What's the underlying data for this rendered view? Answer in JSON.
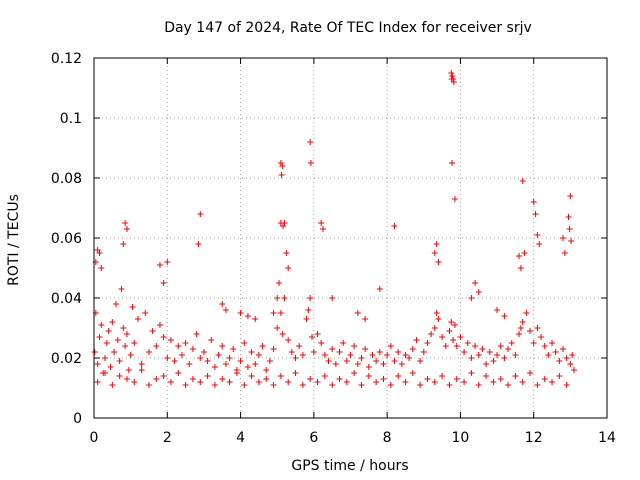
{
  "chart_data": {
    "type": "scatter",
    "title": "Day 147 of 2024, Rate Of TEC Index for receiver srjv",
    "xlabel": "GPS time / hours",
    "ylabel": "ROTI / TECUs",
    "xlim": [
      0,
      14
    ],
    "ylim": [
      0,
      0.12
    ],
    "xticks": [
      0,
      2,
      4,
      6,
      8,
      10,
      12,
      14
    ],
    "xtick_labels": [
      "0",
      "2",
      "4",
      "6",
      "8",
      "10",
      "12",
      "14"
    ],
    "yticks": [
      0,
      0.02,
      0.04,
      0.06,
      0.08,
      0.1,
      0.12
    ],
    "ytick_labels": [
      "0",
      "0.02",
      "0.04",
      "0.06",
      "0.08",
      "0.1",
      "0.12"
    ],
    "grid": true,
    "marker": "+",
    "color": "#ff0000",
    "series": [
      {
        "name": "ROTI",
        "x": [
          0.02,
          0.05,
          0.1,
          0.15,
          0.2,
          0.25,
          0.3,
          0.35,
          0.4,
          0.45,
          0.5,
          0.55,
          0.6,
          0.65,
          0.7,
          0.75,
          0.8,
          0.85,
          0.9,
          0.95,
          1.0,
          1.05,
          1.1,
          1.2,
          1.3,
          1.4,
          1.5,
          1.6,
          1.7,
          1.8,
          1.9,
          2.0,
          2.1,
          2.2,
          2.3,
          2.4,
          2.5,
          2.6,
          2.7,
          2.8,
          2.9,
          3.0,
          3.1,
          3.2,
          3.3,
          3.4,
          3.5,
          3.6,
          3.7,
          3.8,
          3.9,
          4.0,
          4.1,
          4.2,
          4.3,
          4.4,
          4.5,
          4.6,
          4.7,
          4.8,
          4.9,
          5.0,
          5.05,
          5.1,
          5.15,
          5.2,
          5.3,
          5.4,
          5.5,
          5.6,
          5.7,
          5.8,
          5.85,
          5.9,
          5.95,
          6.0,
          6.1,
          6.2,
          6.3,
          6.4,
          6.5,
          6.6,
          6.7,
          6.8,
          6.9,
          7.0,
          7.1,
          7.2,
          7.3,
          7.4,
          7.5,
          7.6,
          7.7,
          7.8,
          7.9,
          8.0,
          8.1,
          8.2,
          8.3,
          8.4,
          8.5,
          8.6,
          8.7,
          8.8,
          8.9,
          9.0,
          9.1,
          9.2,
          9.3,
          9.35,
          9.4,
          9.5,
          9.6,
          9.7,
          9.75,
          9.8,
          9.85,
          9.9,
          10.0,
          10.1,
          10.2,
          10.3,
          10.4,
          10.5,
          10.6,
          10.7,
          10.8,
          10.9,
          11.0,
          11.1,
          11.2,
          11.3,
          11.4,
          11.5,
          11.6,
          11.65,
          11.7,
          11.8,
          11.9,
          12.0,
          12.1,
          12.2,
          12.3,
          12.4,
          12.5,
          12.6,
          12.7,
          12.8,
          12.9,
          13.0,
          13.05,
          13.1,
          0.1,
          0.3,
          0.5,
          0.7,
          0.9,
          1.1,
          1.3,
          1.5,
          1.7,
          1.9,
          2.1,
          2.3,
          2.5,
          2.7,
          2.9,
          3.1,
          3.3,
          3.5,
          3.7,
          3.9,
          4.1,
          4.3,
          4.5,
          4.7,
          4.9,
          5.1,
          5.3,
          5.5,
          5.7,
          5.9,
          6.1,
          6.3,
          6.5,
          6.7,
          6.9,
          7.1,
          7.3,
          7.5,
          7.7,
          7.9,
          8.1,
          8.3,
          8.5,
          8.7,
          8.9,
          9.1,
          9.3,
          9.5,
          9.7,
          9.9,
          10.1,
          10.3,
          10.5,
          10.7,
          10.9,
          11.1,
          11.3,
          11.5,
          11.7,
          11.9,
          12.1,
          12.3,
          12.5,
          12.7,
          12.9,
          0.85,
          0.9,
          0.8,
          5.1,
          5.12,
          5.14,
          5.1,
          5.16,
          5.2,
          5.25,
          5.3,
          5.9,
          5.92,
          6.2,
          6.25,
          9.75,
          9.8,
          9.78,
          9.82,
          9.77,
          9.76,
          9.85,
          11.7,
          12.0,
          12.05,
          12.95,
          12.98,
          13.0,
          13.02,
          2.85,
          2.9,
          0.1,
          0.15,
          0.2,
          1.8,
          1.9,
          2.0,
          4.9,
          5.0,
          9.3,
          9.35,
          9.4,
          11.6,
          11.65,
          11.75,
          12.8,
          12.85,
          8.2,
          3.5,
          3.6,
          6.5,
          7.8,
          10.3,
          10.4,
          10.5,
          0.05,
          12.1,
          12.15,
          4.0,
          4.2,
          4.4,
          7.2,
          7.4,
          11.0,
          11.2
        ],
        "y": [
          0.022,
          0.035,
          0.018,
          0.027,
          0.031,
          0.015,
          0.02,
          0.025,
          0.029,
          0.017,
          0.032,
          0.022,
          0.038,
          0.026,
          0.019,
          0.043,
          0.03,
          0.024,
          0.028,
          0.016,
          0.021,
          0.037,
          0.025,
          0.033,
          0.018,
          0.035,
          0.022,
          0.029,
          0.024,
          0.031,
          0.027,
          0.02,
          0.026,
          0.019,
          0.024,
          0.021,
          0.025,
          0.018,
          0.023,
          0.028,
          0.02,
          0.022,
          0.019,
          0.026,
          0.017,
          0.021,
          0.024,
          0.018,
          0.02,
          0.023,
          0.016,
          0.019,
          0.025,
          0.017,
          0.022,
          0.018,
          0.021,
          0.024,
          0.016,
          0.019,
          0.023,
          0.03,
          0.045,
          0.035,
          0.028,
          0.04,
          0.026,
          0.022,
          0.02,
          0.024,
          0.021,
          0.033,
          0.036,
          0.04,
          0.027,
          0.022,
          0.028,
          0.025,
          0.021,
          0.019,
          0.023,
          0.018,
          0.022,
          0.025,
          0.019,
          0.021,
          0.024,
          0.018,
          0.02,
          0.023,
          0.017,
          0.021,
          0.019,
          0.022,
          0.018,
          0.021,
          0.024,
          0.019,
          0.022,
          0.018,
          0.021,
          0.02,
          0.023,
          0.026,
          0.019,
          0.022,
          0.025,
          0.028,
          0.03,
          0.035,
          0.033,
          0.027,
          0.024,
          0.029,
          0.032,
          0.026,
          0.031,
          0.024,
          0.027,
          0.022,
          0.025,
          0.02,
          0.024,
          0.021,
          0.023,
          0.018,
          0.022,
          0.019,
          0.021,
          0.024,
          0.02,
          0.023,
          0.025,
          0.021,
          0.028,
          0.03,
          0.032,
          0.035,
          0.029,
          0.025,
          0.03,
          0.027,
          0.024,
          0.021,
          0.025,
          0.022,
          0.019,
          0.023,
          0.02,
          0.018,
          0.021,
          0.016,
          0.012,
          0.015,
          0.011,
          0.014,
          0.013,
          0.012,
          0.016,
          0.011,
          0.013,
          0.014,
          0.012,
          0.015,
          0.011,
          0.013,
          0.012,
          0.014,
          0.011,
          0.013,
          0.012,
          0.015,
          0.011,
          0.014,
          0.012,
          0.013,
          0.011,
          0.014,
          0.012,
          0.015,
          0.011,
          0.013,
          0.012,
          0.014,
          0.011,
          0.013,
          0.012,
          0.015,
          0.011,
          0.014,
          0.012,
          0.013,
          0.011,
          0.014,
          0.012,
          0.015,
          0.011,
          0.013,
          0.012,
          0.014,
          0.011,
          0.013,
          0.012,
          0.015,
          0.011,
          0.014,
          0.012,
          0.013,
          0.011,
          0.014,
          0.012,
          0.015,
          0.011,
          0.013,
          0.012,
          0.014,
          0.011,
          0.065,
          0.063,
          0.058,
          0.085,
          0.081,
          0.084,
          0.065,
          0.064,
          0.065,
          0.055,
          0.05,
          0.092,
          0.085,
          0.065,
          0.063,
          0.115,
          0.113,
          0.114,
          0.112,
          0.085,
          0.113,
          0.073,
          0.079,
          0.072,
          0.068,
          0.067,
          0.063,
          0.074,
          0.059,
          0.058,
          0.068,
          0.056,
          0.055,
          0.05,
          0.051,
          0.045,
          0.052,
          0.035,
          0.04,
          0.055,
          0.058,
          0.052,
          0.054,
          0.05,
          0.055,
          0.06,
          0.055,
          0.064,
          0.038,
          0.036,
          0.04,
          0.043,
          0.04,
          0.045,
          0.042,
          0.052,
          0.061,
          0.058,
          0.035,
          0.034,
          0.033,
          0.035,
          0.033,
          0.036,
          0.034
        ]
      }
    ]
  }
}
